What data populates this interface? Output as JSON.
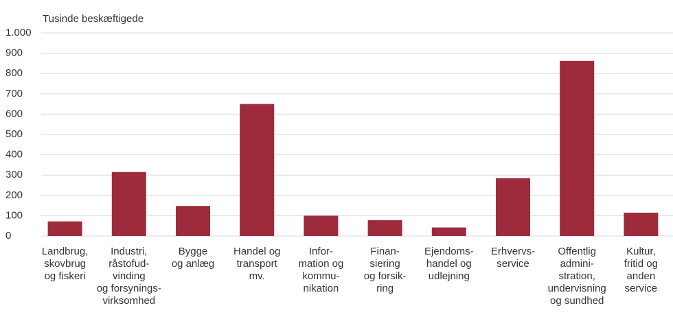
{
  "chart_data": {
    "type": "bar",
    "title": "Tusinde beskæftigede",
    "categories": [
      [
        "Landbrug,",
        "skovbrug",
        "og fiskeri"
      ],
      [
        "Industri,",
        "råstofud-",
        "vinding",
        "og forsynings-",
        "virksomhed"
      ],
      [
        "Bygge",
        "og anlæg"
      ],
      [
        "Handel og",
        "transport",
        "mv."
      ],
      [
        "Infor-",
        "mation og",
        "kommu-",
        "nikation"
      ],
      [
        "Finan-",
        "siering",
        "og forsik-",
        "ring"
      ],
      [
        "Ejendoms-",
        "handel og",
        "udlejning"
      ],
      [
        "Erhvervs-",
        "service"
      ],
      [
        "Offentlig",
        "admini-",
        "stration,",
        "undervisning",
        "og sundhed"
      ],
      [
        "Kultur,",
        "fritid og",
        "anden",
        "service"
      ]
    ],
    "values": [
      72,
      315,
      148,
      650,
      100,
      78,
      42,
      285,
      862,
      115
    ],
    "color": "#9e2b3b",
    "ylim": [
      0,
      1000
    ],
    "yticks": [
      0,
      100,
      200,
      300,
      400,
      500,
      600,
      700,
      800,
      900,
      {
        "value": 1000,
        "label": "1.000"
      }
    ],
    "grid": true
  }
}
